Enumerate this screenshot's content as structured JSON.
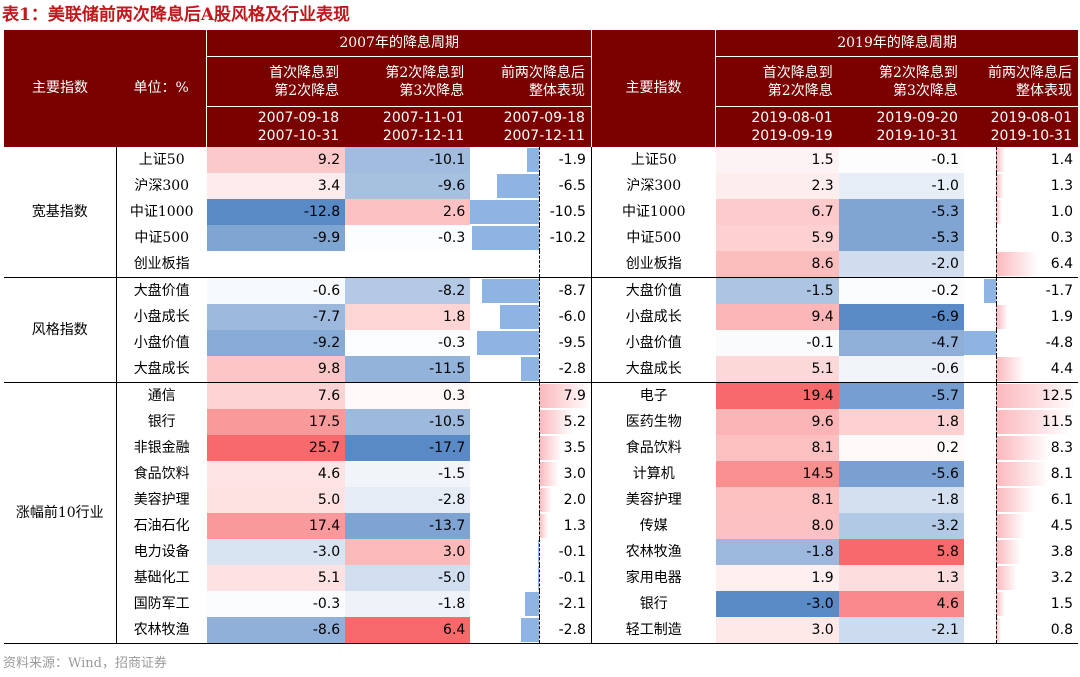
{
  "title": "表1：美联储前两次降息后A股风格及行业表现",
  "footer": "资料来源：Wind，招商证券",
  "header": {
    "col_index": "主要指数",
    "col_unit": "单位：%",
    "period_2007": "2007年的降息周期",
    "period_2019": "2019年的降息周期",
    "col_index_right": "主要指数",
    "sub_2007": [
      {
        "l1": "首次降息到",
        "l2": "第2次降息",
        "d1": "2007-09-18",
        "d2": "2007-10-31"
      },
      {
        "l1": "第2次降息到",
        "l2": "第3次降息",
        "d1": "2007-11-01",
        "d2": "2007-12-11"
      },
      {
        "l1": "前两次降息后",
        "l2": "整体表现",
        "d1": "2007-09-18",
        "d2": "2007-12-11"
      }
    ],
    "sub_2019": [
      {
        "l1": "首次降息到",
        "l2": "第2次降息",
        "d1": "2019-08-01",
        "d2": "2019-09-19"
      },
      {
        "l1": "第2次降息到",
        "l2": "第3次降息",
        "d1": "2019-09-20",
        "d2": "2019-10-31"
      },
      {
        "l1": "前两次降息后",
        "l2": "整体表现",
        "d1": "2019-08-01",
        "d2": "2019-10-31"
      }
    ]
  },
  "groups": [
    {
      "name": "宽基指数",
      "rows": [
        {
          "l": "上证50",
          "a": "9.2",
          "b": "-10.1",
          "c": "-1.9",
          "r": "上证50",
          "d": "1.5",
          "e": "-0.1",
          "f": "1.4"
        },
        {
          "l": "沪深300",
          "a": "3.4",
          "b": "-9.6",
          "c": "-6.5",
          "r": "沪深300",
          "d": "2.3",
          "e": "-1.0",
          "f": "1.3"
        },
        {
          "l": "中证1000",
          "a": "-12.8",
          "b": "2.6",
          "c": "-10.5",
          "r": "中证1000",
          "d": "6.7",
          "e": "-5.3",
          "f": "1.0"
        },
        {
          "l": "中证500",
          "a": "-9.9",
          "b": "-0.3",
          "c": "-10.2",
          "r": "中证500",
          "d": "5.9",
          "e": "-5.3",
          "f": "0.3"
        },
        {
          "l": "创业板指",
          "a": "",
          "b": "",
          "c": "",
          "r": "创业板指",
          "d": "8.6",
          "e": "-2.0",
          "f": "6.4"
        }
      ]
    },
    {
      "name": "风格指数",
      "rows": [
        {
          "l": "大盘价值",
          "a": "-0.6",
          "b": "-8.2",
          "c": "-8.7",
          "r": "大盘价值",
          "d": "-1.5",
          "e": "-0.2",
          "f": "-1.7"
        },
        {
          "l": "小盘成长",
          "a": "-7.7",
          "b": "1.8",
          "c": "-6.0",
          "r": "小盘成长",
          "d": "9.4",
          "e": "-6.9",
          "f": "1.9"
        },
        {
          "l": "小盘价值",
          "a": "-9.2",
          "b": "-0.3",
          "c": "-9.5",
          "r": "小盘价值",
          "d": "-0.1",
          "e": "-4.7",
          "f": "-4.8"
        },
        {
          "l": "大盘成长",
          "a": "9.8",
          "b": "-11.5",
          "c": "-2.8",
          "r": "大盘成长",
          "d": "5.1",
          "e": "-0.6",
          "f": "4.4"
        }
      ]
    },
    {
      "name": "涨幅前10行业",
      "rows": [
        {
          "l": "通信",
          "a": "7.6",
          "b": "0.3",
          "c": "7.9",
          "r": "电子",
          "d": "19.4",
          "e": "-5.7",
          "f": "12.5"
        },
        {
          "l": "银行",
          "a": "17.5",
          "b": "-10.5",
          "c": "5.2",
          "r": "医药生物",
          "d": "9.6",
          "e": "1.8",
          "f": "11.5"
        },
        {
          "l": "非银金融",
          "a": "25.7",
          "b": "-17.7",
          "c": "3.5",
          "r": "食品饮料",
          "d": "8.1",
          "e": "0.2",
          "f": "8.3"
        },
        {
          "l": "食品饮料",
          "a": "4.6",
          "b": "-1.5",
          "c": "3.0",
          "r": "计算机",
          "d": "14.5",
          "e": "-5.6",
          "f": "8.1"
        },
        {
          "l": "美容护理",
          "a": "5.0",
          "b": "-2.8",
          "c": "2.0",
          "r": "美容护理",
          "d": "8.1",
          "e": "-1.8",
          "f": "6.1"
        },
        {
          "l": "石油石化",
          "a": "17.4",
          "b": "-13.7",
          "c": "1.3",
          "r": "传媒",
          "d": "8.0",
          "e": "-3.2",
          "f": "4.5"
        },
        {
          "l": "电力设备",
          "a": "-3.0",
          "b": "3.0",
          "c": "-0.1",
          "r": "农林牧渔",
          "d": "-1.8",
          "e": "5.8",
          "f": "3.8"
        },
        {
          "l": "基础化工",
          "a": "5.1",
          "b": "-5.0",
          "c": "-0.1",
          "r": "家用电器",
          "d": "1.9",
          "e": "1.3",
          "f": "3.2"
        },
        {
          "l": "国防军工",
          "a": "-0.3",
          "b": "-1.8",
          "c": "-2.1",
          "r": "银行",
          "d": "-3.0",
          "e": "4.6",
          "f": "1.5"
        },
        {
          "l": "农林牧渔",
          "a": "-8.6",
          "b": "6.4",
          "c": "-2.8",
          "r": "轻工制造",
          "d": "3.0",
          "e": "-2.1",
          "f": "0.8"
        }
      ]
    }
  ],
  "colors": {
    "header_bg": "#7b0000",
    "title": "#c0181c",
    "pos": "#f8696b",
    "neg": "#5a8ac6",
    "bar_pos": "#fbb8bd",
    "bar_neg": "#8eb4e3"
  }
}
